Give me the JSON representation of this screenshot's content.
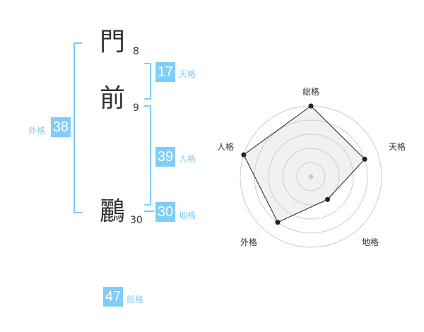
{
  "name": {
    "chars": [
      {
        "char": "門",
        "strokes": "8"
      },
      {
        "char": "前",
        "strokes": "9"
      },
      {
        "char": "鸝",
        "strokes": "30"
      }
    ]
  },
  "fortunes": {
    "tenkaku": {
      "label": "天格",
      "value": "17"
    },
    "jinkaku": {
      "label": "人格",
      "value": "39"
    },
    "chikaku": {
      "label": "地格",
      "value": "30"
    },
    "gaikaku": {
      "label": "外格",
      "value": "38"
    },
    "soukaku": {
      "label": "総格",
      "value": "47"
    }
  },
  "colors": {
    "accent": "#7fcdf9",
    "text": "#333333"
  },
  "chart_data": {
    "type": "radar",
    "axes": [
      "総格",
      "天格",
      "地格",
      "外格",
      "人格"
    ],
    "values": [
      5,
      4,
      2,
      4,
      5
    ],
    "range": [
      0,
      5
    ],
    "rings": 5
  }
}
